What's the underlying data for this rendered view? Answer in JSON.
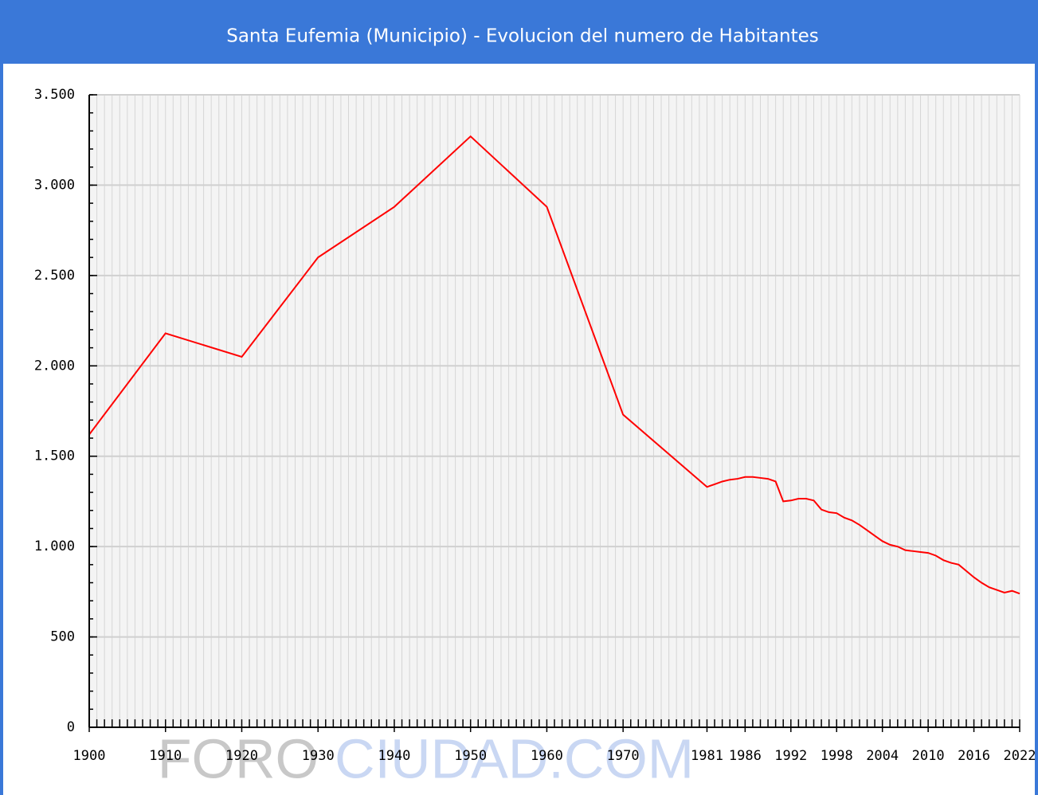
{
  "chart_data": {
    "type": "line",
    "title": "Santa Eufemia (Municipio) - Evolucion del numero de Habitantes",
    "watermark": [
      "FORO",
      "CIUDAD.COM"
    ],
    "x": [
      1900,
      1910,
      1920,
      1930,
      1940,
      1950,
      1960,
      1970,
      1981,
      1982,
      1983,
      1984,
      1985,
      1986,
      1987,
      1988,
      1989,
      1990,
      1991,
      1992,
      1993,
      1994,
      1995,
      1996,
      1997,
      1998,
      1999,
      2000,
      2001,
      2002,
      2003,
      2004,
      2005,
      2006,
      2007,
      2008,
      2009,
      2010,
      2011,
      2012,
      2013,
      2014,
      2015,
      2016,
      2017,
      2018,
      2019,
      2020,
      2021,
      2022
    ],
    "values": [
      1620,
      2180,
      2050,
      2600,
      2880,
      3270,
      2880,
      1730,
      1330,
      1345,
      1360,
      1370,
      1375,
      1385,
      1385,
      1380,
      1375,
      1360,
      1250,
      1255,
      1265,
      1265,
      1255,
      1205,
      1190,
      1185,
      1160,
      1145,
      1120,
      1090,
      1060,
      1030,
      1010,
      1000,
      980,
      975,
      970,
      965,
      950,
      925,
      910,
      900,
      865,
      830,
      800,
      775,
      760,
      745,
      755,
      740
    ],
    "color": "#ff0000",
    "xlim": [
      1900,
      2022
    ],
    "xticks": [
      1900,
      1910,
      1920,
      1930,
      1940,
      1950,
      1960,
      1970,
      1981,
      1986,
      1992,
      1998,
      2004,
      2010,
      2016,
      2022
    ],
    "xminor": 1,
    "ylim": [
      0,
      3500
    ],
    "yticks": [
      0,
      500,
      {
        "value": 1000,
        "label": "1.000"
      },
      {
        "value": 1500,
        "label": "1.500"
      },
      {
        "value": 2000,
        "label": "2.000"
      },
      {
        "value": 2500,
        "label": "2.500"
      },
      {
        "value": 3000,
        "label": "3.000"
      },
      {
        "value": 3500,
        "label": "3.500"
      }
    ],
    "yminor": 100,
    "grid": true
  }
}
